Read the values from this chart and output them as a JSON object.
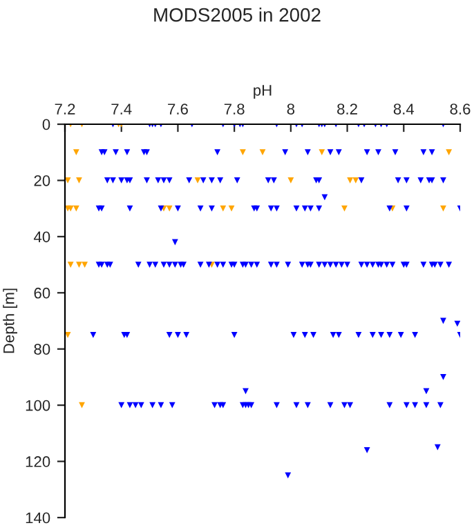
{
  "chart_data": {
    "type": "scatter",
    "title": "MODS2005 in 2002",
    "xlabel": "pH",
    "ylabel": "Depth [m]",
    "xlim": [
      7.2,
      8.6
    ],
    "xticks": [
      7.2,
      7.4,
      7.6,
      7.8,
      8,
      8.2,
      8.4,
      8.6
    ],
    "ylim": [
      140,
      0
    ],
    "yticks": [
      0,
      20,
      40,
      60,
      80,
      100,
      120,
      140
    ],
    "grid": false,
    "legend": false,
    "marker": "triangle",
    "series": [
      {
        "color": "#ffa500",
        "x": [
          7.22,
          7.26,
          7.39,
          7.4,
          7.24,
          7.83,
          7.9,
          8.11,
          8.56,
          7.21,
          7.25,
          7.67,
          8.0,
          8.21,
          8.23,
          7.21,
          7.22,
          7.24,
          7.55,
          7.57,
          7.76,
          7.79,
          8.19,
          8.36,
          8.54,
          7.22,
          7.25,
          7.27,
          7.72,
          7.21,
          7.26
        ],
        "values": [
          0,
          0,
          0,
          0,
          10,
          10,
          10,
          10,
          10,
          20,
          20,
          20,
          20,
          20,
          20,
          30,
          30,
          30,
          30,
          30,
          30,
          30,
          30,
          30,
          30,
          50,
          50,
          50,
          50,
          75,
          100
        ]
      },
      {
        "color": "#0000ff",
        "x": [
          7.37,
          7.5,
          7.51,
          7.52,
          7.54,
          7.65,
          7.76,
          7.8,
          7.82,
          7.83,
          7.95,
          8.02,
          8.04,
          8.1,
          8.11,
          8.12,
          8.16,
          8.24,
          8.26,
          8.3,
          8.32,
          8.34,
          8.54,
          7.33,
          7.34,
          7.38,
          7.42,
          7.48,
          7.49,
          7.74,
          7.98,
          8.06,
          8.14,
          8.17,
          8.27,
          8.31,
          8.37,
          8.47,
          8.5,
          7.35,
          7.37,
          7.4,
          7.42,
          7.43,
          7.49,
          7.53,
          7.55,
          7.57,
          7.64,
          7.69,
          7.72,
          7.75,
          7.81,
          7.92,
          7.94,
          8.09,
          8.1,
          8.25,
          8.38,
          8.41,
          8.46,
          8.49,
          8.5,
          8.54,
          8.12,
          7.32,
          7.33,
          7.43,
          7.54,
          7.6,
          7.68,
          7.72,
          7.87,
          7.88,
          7.93,
          7.95,
          8.02,
          8.05,
          8.07,
          8.1,
          8.35,
          8.41,
          8.6,
          7.59,
          7.32,
          7.33,
          7.35,
          7.36,
          7.46,
          7.5,
          7.52,
          7.55,
          7.57,
          7.59,
          7.61,
          7.62,
          7.68,
          7.71,
          7.74,
          7.76,
          7.79,
          7.8,
          7.83,
          7.84,
          7.86,
          7.88,
          7.93,
          7.95,
          7.99,
          8.04,
          8.06,
          8.07,
          8.1,
          8.12,
          8.14,
          8.16,
          8.18,
          8.2,
          8.25,
          8.27,
          8.29,
          8.31,
          8.32,
          8.34,
          8.36,
          8.4,
          8.41,
          8.47,
          8.5,
          8.51,
          8.53,
          8.56,
          8.54,
          8.59,
          7.3,
          7.41,
          7.42,
          7.57,
          7.6,
          7.63,
          7.8,
          8.01,
          8.05,
          8.08,
          8.15,
          8.17,
          8.24,
          8.29,
          8.32,
          8.35,
          8.39,
          8.44,
          8.6,
          8.54,
          7.84,
          8.48,
          7.4,
          7.43,
          7.45,
          7.47,
          7.51,
          7.54,
          7.58,
          7.73,
          7.75,
          7.76,
          7.83,
          7.84,
          7.85,
          7.86,
          7.95,
          8.02,
          8.06,
          8.14,
          8.19,
          8.21,
          8.35,
          8.41,
          8.44,
          8.48,
          8.53,
          8.27,
          8.52,
          7.99
        ],
        "values": [
          0,
          0,
          0,
          0,
          0,
          0,
          0,
          0,
          0,
          0,
          0,
          0,
          0,
          0,
          0,
          0,
          0,
          0,
          0,
          0,
          0,
          0,
          0,
          10,
          10,
          10,
          10,
          10,
          10,
          10,
          10,
          10,
          10,
          10,
          10,
          10,
          10,
          10,
          10,
          20,
          20,
          20,
          20,
          20,
          20,
          20,
          20,
          20,
          20,
          20,
          20,
          20,
          20,
          20,
          20,
          20,
          20,
          20,
          20,
          20,
          20,
          20,
          20,
          20,
          26,
          30,
          30,
          30,
          30,
          30,
          30,
          30,
          30,
          30,
          30,
          30,
          30,
          30,
          30,
          30,
          30,
          30,
          30,
          42,
          50,
          50,
          50,
          50,
          50,
          50,
          50,
          50,
          50,
          50,
          50,
          50,
          50,
          50,
          50,
          50,
          50,
          50,
          50,
          50,
          50,
          50,
          50,
          50,
          50,
          50,
          50,
          50,
          50,
          50,
          50,
          50,
          50,
          50,
          50,
          50,
          50,
          50,
          50,
          50,
          50,
          50,
          50,
          50,
          50,
          50,
          50,
          50,
          70,
          71,
          75,
          75,
          75,
          75,
          75,
          75,
          75,
          75,
          75,
          75,
          75,
          75,
          75,
          75,
          75,
          75,
          75,
          75,
          75,
          90,
          95,
          95,
          100,
          100,
          100,
          100,
          100,
          100,
          100,
          100,
          100,
          100,
          100,
          100,
          100,
          100,
          100,
          100,
          100,
          100,
          100,
          100,
          100,
          100,
          100,
          100,
          100,
          116,
          115,
          125
        ]
      }
    ]
  }
}
